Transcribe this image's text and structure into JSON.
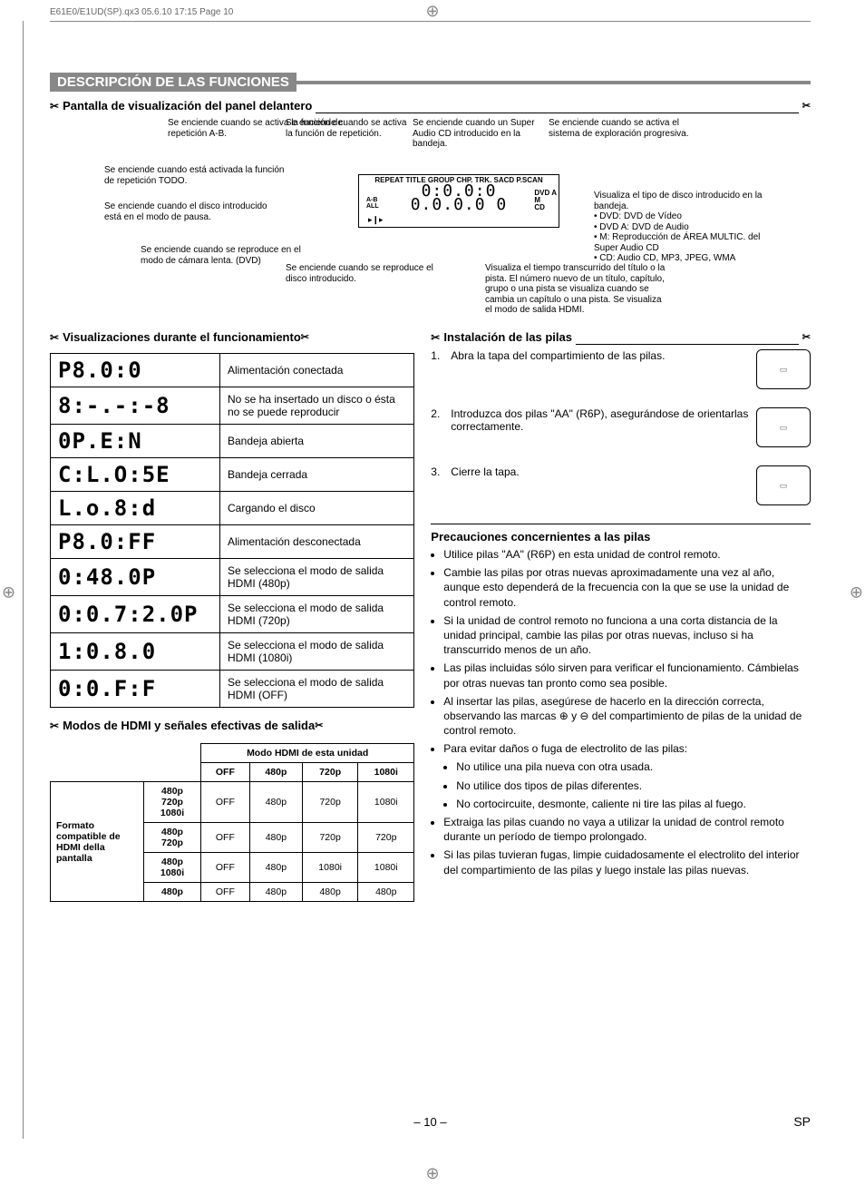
{
  "print_header": "E61E0/E1UD(SP).qx3  05.6.10 17:15  Page 10",
  "section_title": "DESCRIPCIÓN DE LAS FUNCIONES",
  "sub1": "Pantalla de visualización del panel delantero",
  "sub2": "Visualizaciones durante el funcionamiento",
  "sub3": "Modos de HDMI y señales efectivas de salida",
  "sub4": "Instalación de las pilas",
  "precautions_title": "Precauciones concernientes a las pilas",
  "page_number": "– 10 –",
  "sp_label": "SP",
  "callouts": {
    "c1": "Se enciende cuando se activa la función de repetición A-B.",
    "c2": "Se enciende cuando se activa la función de repetición.",
    "c3": "Se enciende cuando un Super Audio CD introducido en la bandeja.",
    "c4": "Se enciende cuando se activa el sistema de exploración progresiva.",
    "c5": "",
    "c6": "Se enciende cuando está activada la función de repetición TODO.",
    "c7": "Se enciende cuando el disco introducido está en el modo de pausa.",
    "c8": "Se enciende cuando se reproduce en el modo de cámara lenta. (DVD)",
    "c9": "Se enciende cuando se reproduce el disco introducido.",
    "c10": "Visualiza el tipo de disco introducido en la bandeja.\n• DVD: DVD de Vídeo\n• DVD A: DVD de Audio\n• M: Reproducción de ÁREA MULTIC. del Super Audio CD\n• CD: Audio CD, MP3, JPEG, WMA",
    "c11": "Visualiza el tiempo transcurrido del título o la pista. El número nuevo de un título, capítulo, grupo o una pista se visualiza cuando se cambia un capítulo o una pista. Se visualiza el modo de salida HDMI."
  },
  "panel_labels": {
    "row1": "REPEAT  TITLE GROUP  CHP. TRK.  SACD P.SCAN",
    "ab": "A-B",
    "all": "ALL",
    "dvda": "DVD A",
    "m": "M",
    "cd": "CD",
    "digits_top": "0:0.0:0",
    "digits_bot": "0.0.0.0 0"
  },
  "display_rows": [
    {
      "seg": "P8.0:0",
      "desc": "Alimentación conectada"
    },
    {
      "seg": "8:-.-:-8",
      "desc": "No se ha insertado un disco o ésta no se puede reproducir"
    },
    {
      "seg": "0P.E:N",
      "desc": "Bandeja abierta"
    },
    {
      "seg": "C:L.O:5E",
      "desc": "Bandeja cerrada"
    },
    {
      "seg": "L.o.8:d",
      "desc": "Cargando el disco"
    },
    {
      "seg": "P8.0:FF",
      "desc": "Alimentación desconectada"
    },
    {
      "seg": "0:48.0P",
      "desc": "Se selecciona el modo de salida HDMI (480p)"
    },
    {
      "seg": "0:0.7:2.0P",
      "desc": "Se selecciona el modo de salida HDMI (720p)"
    },
    {
      "seg": "1:0.8.0",
      "desc": "Se selecciona el modo de salida HDMI (1080i)"
    },
    {
      "seg": "0:0.F:F",
      "desc": "Se selecciona el modo de salida HDMI (OFF)"
    }
  ],
  "hdmi_table": {
    "mode_header": "Modo HDMI de esta unidad",
    "columns": [
      "OFF",
      "480p",
      "720p",
      "1080i"
    ],
    "row_label": "Formato compatible de HDMI della pantalla",
    "rows": [
      {
        "fmt": "480p\n720p\n1080i",
        "cells": [
          "OFF",
          "480p",
          "720p",
          "1080i"
        ]
      },
      {
        "fmt": "480p\n720p",
        "cells": [
          "OFF",
          "480p",
          "720p",
          "720p"
        ]
      },
      {
        "fmt": "480p\n1080i",
        "cells": [
          "OFF",
          "480p",
          "1080i",
          "1080i"
        ]
      },
      {
        "fmt": "480p",
        "cells": [
          "OFF",
          "480p",
          "480p",
          "480p"
        ]
      }
    ]
  },
  "battery_steps": [
    {
      "n": "1.",
      "t": "Abra la tapa del compartimiento de las pilas."
    },
    {
      "n": "2.",
      "t": "Introduzca dos pilas \"AA\" (R6P), asegurándose de orientarlas correctamente."
    },
    {
      "n": "3.",
      "t": "Cierre la tapa."
    }
  ],
  "precautions": [
    "Utilice pilas \"AA\" (R6P) en esta unidad de control remoto.",
    "Cambie las pilas por otras nuevas aproximadamente una vez al año, aunque esto dependerá de la frecuencia con la que se use la unidad de control remoto.",
    "Si la unidad de control remoto no funciona a una corta distancia de la unidad principal, cambie las pilas por otras nuevas, incluso si ha transcurrido menos de un año.",
    "Las pilas incluidas sólo sirven para verificar el funcionamiento. Cámbielas por otras nuevas tan pronto como sea posible.",
    "Al insertar las pilas, asegúrese de hacerlo en la dirección correcta, observando las marcas ⊕ y ⊖ del compartimiento de pilas de la unidad de control remoto.",
    "Para evitar daños o fuga de electrolito de las pilas:"
  ],
  "precautions_sub": [
    "No utilice una pila nueva con otra usada.",
    "No utilice dos tipos de pilas diferentes.",
    "No cortocircuite, desmonte, caliente ni tire las pilas al fuego."
  ],
  "precautions_after": [
    "Extraiga las pilas cuando no vaya a utilizar la unidad de control remoto durante un período de tiempo prolongado.",
    "Si las pilas tuvieran fugas, limpie cuidadosamente el electrolito del interior del compartimiento de las pilas y luego instale las pilas nuevas."
  ]
}
